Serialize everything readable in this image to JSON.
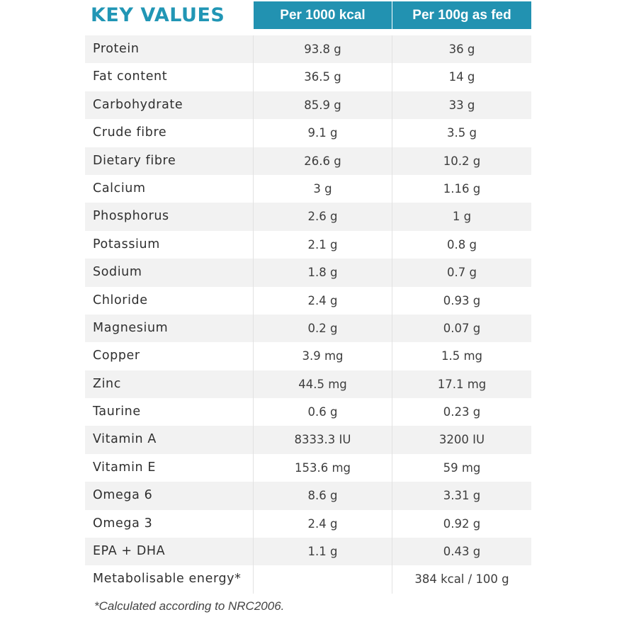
{
  "title": "KEY VALUES",
  "columns": [
    "Per 1000 kcal",
    "Per 100g as fed"
  ],
  "rows": [
    {
      "name": "Protein",
      "per_1000_kcal": "93.8 g",
      "per_100g": "36 g"
    },
    {
      "name": "Fat content",
      "per_1000_kcal": "36.5 g",
      "per_100g": "14 g"
    },
    {
      "name": "Carbohydrate",
      "per_1000_kcal": "85.9 g",
      "per_100g": "33 g"
    },
    {
      "name": "Crude fibre",
      "per_1000_kcal": "9.1 g",
      "per_100g": "3.5 g"
    },
    {
      "name": "Dietary fibre",
      "per_1000_kcal": "26.6 g",
      "per_100g": "10.2 g"
    },
    {
      "name": "Calcium",
      "per_1000_kcal": "3 g",
      "per_100g": "1.16 g"
    },
    {
      "name": "Phosphorus",
      "per_1000_kcal": "2.6 g",
      "per_100g": "1 g"
    },
    {
      "name": "Potassium",
      "per_1000_kcal": "2.1 g",
      "per_100g": "0.8 g"
    },
    {
      "name": "Sodium",
      "per_1000_kcal": "1.8 g",
      "per_100g": "0.7 g"
    },
    {
      "name": "Chloride",
      "per_1000_kcal": "2.4 g",
      "per_100g": "0.93 g"
    },
    {
      "name": "Magnesium",
      "per_1000_kcal": "0.2 g",
      "per_100g": "0.07 g"
    },
    {
      "name": "Copper",
      "per_1000_kcal": "3.9 mg",
      "per_100g": "1.5 mg"
    },
    {
      "name": "Zinc",
      "per_1000_kcal": "44.5 mg",
      "per_100g": "17.1 mg"
    },
    {
      "name": "Taurine",
      "per_1000_kcal": "0.6 g",
      "per_100g": "0.23 g"
    },
    {
      "name": "Vitamin A",
      "per_1000_kcal": "8333.3 IU",
      "per_100g": "3200 IU"
    },
    {
      "name": "Vitamin E",
      "per_1000_kcal": "153.6 mg",
      "per_100g": "59 mg"
    },
    {
      "name": "Omega 6",
      "per_1000_kcal": "8.6 g",
      "per_100g": "3.31 g"
    },
    {
      "name": "Omega 3",
      "per_1000_kcal": "2.4 g",
      "per_100g": "0.92 g"
    },
    {
      "name": "EPA + DHA",
      "per_1000_kcal": "1.1 g",
      "per_100g": "0.43 g"
    },
    {
      "name": "Metabolisable energy*",
      "per_1000_kcal": "",
      "per_100g": "384 kcal / 100 g"
    }
  ],
  "footnote": "*Calculated according to NRC2006.",
  "colors": {
    "accent": "#2292b1",
    "title": "#2196b5",
    "row_shade": "#f2f2f2"
  }
}
